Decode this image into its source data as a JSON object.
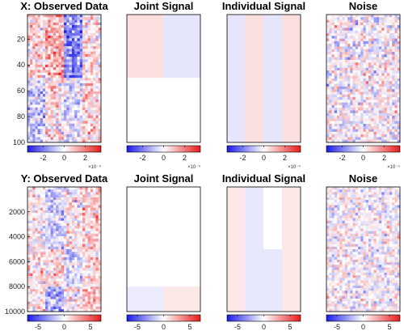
{
  "colors": {
    "blue": "#1a1ae6",
    "white": "#ffffff",
    "red": "#e61a1a"
  },
  "chart_data": [
    {
      "type": "heatmap",
      "title": "X: Observed Data",
      "y_ticks": [
        "20",
        "40",
        "60",
        "80",
        "100"
      ],
      "ylim": [
        1,
        100
      ],
      "colorbar_ticks": [
        "-2",
        "0",
        "2"
      ],
      "colorbar_multiplier": "×10⁻⁴",
      "clim": [
        -0.00035,
        0.00035
      ],
      "blocks": [
        {
          "rows": [
            1,
            50
          ],
          "cols": [
            1,
            25
          ],
          "value": 5e-05,
          "noise": 0.00012
        },
        {
          "rows": [
            1,
            50
          ],
          "cols": [
            25,
            50
          ],
          "value": 0.00013,
          "noise": 0.00012
        },
        {
          "rows": [
            1,
            50
          ],
          "cols": [
            50,
            75
          ],
          "value": -0.00018,
          "noise": 0.00012
        },
        {
          "rows": [
            1,
            50
          ],
          "cols": [
            75,
            100
          ],
          "value": 2e-05,
          "noise": 0.00012
        },
        {
          "rows": [
            50,
            100
          ],
          "cols": [
            1,
            25
          ],
          "value": -8e-05,
          "noise": 0.00012
        },
        {
          "rows": [
            50,
            100
          ],
          "cols": [
            25,
            50
          ],
          "value": 4e-05,
          "noise": 0.00012
        },
        {
          "rows": [
            50,
            100
          ],
          "cols": [
            50,
            75
          ],
          "value": -4e-05,
          "noise": 0.00012
        },
        {
          "rows": [
            50,
            100
          ],
          "cols": [
            75,
            100
          ],
          "value": 6e-05,
          "noise": 0.00012
        }
      ]
    },
    {
      "type": "heatmap",
      "title": "Joint Signal",
      "y_ticks": [],
      "ylim": [
        1,
        100
      ],
      "colorbar_ticks": [
        "-2",
        "0",
        "2"
      ],
      "colorbar_multiplier": "×10⁻⁴",
      "clim": [
        -0.00035,
        0.00035
      ],
      "blocks": [
        {
          "rows": [
            1,
            50
          ],
          "cols": [
            1,
            50
          ],
          "value": 5e-05,
          "noise": 0
        },
        {
          "rows": [
            1,
            50
          ],
          "cols": [
            50,
            100
          ],
          "value": -4e-05,
          "noise": 0
        },
        {
          "rows": [
            50,
            100
          ],
          "cols": [
            1,
            100
          ],
          "value": 0,
          "noise": 0
        }
      ]
    },
    {
      "type": "heatmap",
      "title": "Individual Signal",
      "y_ticks": [],
      "ylim": [
        1,
        100
      ],
      "colorbar_ticks": [
        "-2",
        "0",
        "2"
      ],
      "colorbar_multiplier": "×10⁻⁴",
      "clim": [
        -0.00035,
        0.00035
      ],
      "blocks": [
        {
          "rows": [
            1,
            100
          ],
          "cols": [
            1,
            25
          ],
          "value": -4e-05,
          "noise": 0
        },
        {
          "rows": [
            1,
            100
          ],
          "cols": [
            25,
            50
          ],
          "value": 5e-05,
          "noise": 0
        },
        {
          "rows": [
            1,
            100
          ],
          "cols": [
            50,
            75
          ],
          "value": -4e-05,
          "noise": 0
        },
        {
          "rows": [
            1,
            100
          ],
          "cols": [
            75,
            100
          ],
          "value": 5e-05,
          "noise": 0
        }
      ]
    },
    {
      "type": "heatmap",
      "title": "Noise",
      "y_ticks": [],
      "ylim": [
        1,
        100
      ],
      "colorbar_ticks": [
        "-2",
        "0",
        "2"
      ],
      "colorbar_multiplier": "×10⁻⁴",
      "clim": [
        -0.00035,
        0.00035
      ],
      "blocks": [
        {
          "rows": [
            1,
            100
          ],
          "cols": [
            1,
            100
          ],
          "value": 0,
          "noise": 0.00012
        }
      ]
    },
    {
      "type": "heatmap",
      "title": "Y: Observed Data",
      "y_ticks": [
        "2000",
        "4000",
        "6000",
        "8000",
        "10000"
      ],
      "ylim": [
        1,
        10000
      ],
      "colorbar_ticks": [
        "-5",
        "0",
        "5"
      ],
      "colorbar_multiplier": "",
      "clim": [
        -7,
        7
      ],
      "blocks": [
        {
          "rows": [
            1,
            5000
          ],
          "cols": [
            1,
            25
          ],
          "value": 0.4,
          "noise": 2.2
        },
        {
          "rows": [
            1,
            5000
          ],
          "cols": [
            25,
            50
          ],
          "value": -1.4,
          "noise": 2.2
        },
        {
          "rows": [
            1,
            5000
          ],
          "cols": [
            50,
            75
          ],
          "value": 0.3,
          "noise": 2.2
        },
        {
          "rows": [
            1,
            5000
          ],
          "cols": [
            75,
            100
          ],
          "value": 1.4,
          "noise": 2.2
        },
        {
          "rows": [
            5000,
            8000
          ],
          "cols": [
            1,
            50
          ],
          "value": 1.0,
          "noise": 2.2
        },
        {
          "rows": [
            5000,
            8000
          ],
          "cols": [
            50,
            75
          ],
          "value": -1.0,
          "noise": 2.2
        },
        {
          "rows": [
            5000,
            8000
          ],
          "cols": [
            75,
            100
          ],
          "value": 1.0,
          "noise": 2.2
        },
        {
          "rows": [
            8000,
            10000
          ],
          "cols": [
            1,
            25
          ],
          "value": 0.8,
          "noise": 2.2
        },
        {
          "rows": [
            8000,
            10000
          ],
          "cols": [
            25,
            50
          ],
          "value": -2.5,
          "noise": 2.2
        },
        {
          "rows": [
            8000,
            10000
          ],
          "cols": [
            50,
            75
          ],
          "value": 0.4,
          "noise": 2.2
        },
        {
          "rows": [
            8000,
            10000
          ],
          "cols": [
            75,
            100
          ],
          "value": 2.2,
          "noise": 2.2
        }
      ]
    },
    {
      "type": "heatmap",
      "title": "Joint Signal",
      "y_ticks": [],
      "ylim": [
        1,
        10000
      ],
      "colorbar_ticks": [
        "-5",
        "0",
        "5"
      ],
      "colorbar_multiplier": "",
      "clim": [
        -7,
        7
      ],
      "blocks": [
        {
          "rows": [
            1,
            8000
          ],
          "cols": [
            1,
            100
          ],
          "value": 0,
          "noise": 0
        },
        {
          "rows": [
            8000,
            10000
          ],
          "cols": [
            1,
            50
          ],
          "value": -0.6,
          "noise": 0
        },
        {
          "rows": [
            8000,
            10000
          ],
          "cols": [
            50,
            100
          ],
          "value": 0.7,
          "noise": 0
        }
      ]
    },
    {
      "type": "heatmap",
      "title": "Individual Signal",
      "y_ticks": [],
      "ylim": [
        1,
        10000
      ],
      "colorbar_ticks": [
        "-5",
        "0",
        "5"
      ],
      "colorbar_multiplier": "",
      "clim": [
        -7,
        7
      ],
      "blocks": [
        {
          "rows": [
            1,
            5000
          ],
          "cols": [
            1,
            25
          ],
          "value": 0.7,
          "noise": 0
        },
        {
          "rows": [
            1,
            5000
          ],
          "cols": [
            25,
            50
          ],
          "value": -0.7,
          "noise": 0
        },
        {
          "rows": [
            1,
            5000
          ],
          "cols": [
            50,
            75
          ],
          "value": 0,
          "noise": 0
        },
        {
          "rows": [
            1,
            5000
          ],
          "cols": [
            75,
            100
          ],
          "value": 0.7,
          "noise": 0
        },
        {
          "rows": [
            5000,
            8000
          ],
          "cols": [
            1,
            25
          ],
          "value": 0.7,
          "noise": 0
        },
        {
          "rows": [
            5000,
            8000
          ],
          "cols": [
            25,
            75
          ],
          "value": -0.7,
          "noise": 0
        },
        {
          "rows": [
            5000,
            8000
          ],
          "cols": [
            75,
            100
          ],
          "value": 0.7,
          "noise": 0
        },
        {
          "rows": [
            8000,
            10000
          ],
          "cols": [
            1,
            25
          ],
          "value": 0.7,
          "noise": 0
        },
        {
          "rows": [
            8000,
            10000
          ],
          "cols": [
            25,
            75
          ],
          "value": -0.7,
          "noise": 0
        },
        {
          "rows": [
            8000,
            10000
          ],
          "cols": [
            75,
            100
          ],
          "value": 0.7,
          "noise": 0
        }
      ]
    },
    {
      "type": "heatmap",
      "title": "Noise",
      "y_ticks": [],
      "ylim": [
        1,
        10000
      ],
      "colorbar_ticks": [
        "-5",
        "0",
        "5"
      ],
      "colorbar_multiplier": "",
      "clim": [
        -7,
        7
      ],
      "blocks": [
        {
          "rows": [
            1,
            10000
          ],
          "cols": [
            1,
            100
          ],
          "value": 0,
          "noise": 2.0
        }
      ]
    }
  ]
}
